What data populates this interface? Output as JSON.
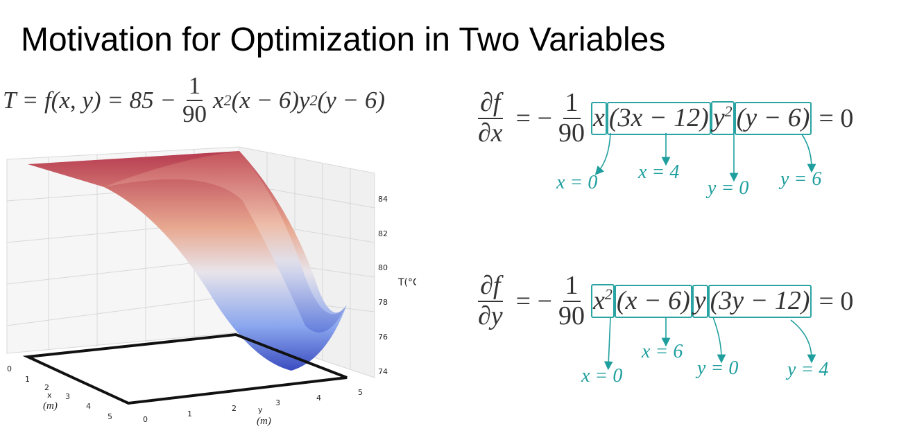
{
  "title": "Motivation for Optimization in Two Variables",
  "equation": {
    "lhs": "T = f(x, y) = 85 −",
    "numerator": "1",
    "denominator": "90",
    "rhs": [
      "x",
      "2",
      "(x − 6)y",
      "2",
      "(y − 6)"
    ]
  },
  "partial_x": {
    "numerator": "∂f",
    "denominator": "∂x",
    "sign": "= −",
    "coef_numerator": "1",
    "coef_denominator": "90",
    "factors": [
      "x",
      "(3x − 12)",
      "y",
      "2",
      "(y − 6)"
    ],
    "equals": "= 0",
    "annotations": [
      "x = 0",
      "x = 4",
      "y = 0",
      "y = 6"
    ]
  },
  "partial_y": {
    "numerator": "∂f",
    "denominator": "∂y",
    "sign": "= −",
    "coef_numerator": "1",
    "coef_denominator": "90",
    "factors": [
      "x",
      "2",
      "(x − 6)",
      "y",
      "(3y − 12)"
    ],
    "equals": "= 0",
    "annotations": [
      "x = 0",
      "x = 6",
      "y = 0",
      "y = 4"
    ]
  },
  "plot": {
    "z_ticks": [
      "74",
      "76",
      "78",
      "80",
      "82",
      "84"
    ],
    "z_label": "T(°C)",
    "x_ticks": [
      "0",
      "1",
      "2",
      "3",
      "4",
      "5"
    ],
    "x_label": "x",
    "x_unit": "(m)",
    "y_ticks": [
      "0",
      "1",
      "2",
      "3",
      "4",
      "5"
    ],
    "y_label": "y",
    "y_unit": "(m)"
  }
}
